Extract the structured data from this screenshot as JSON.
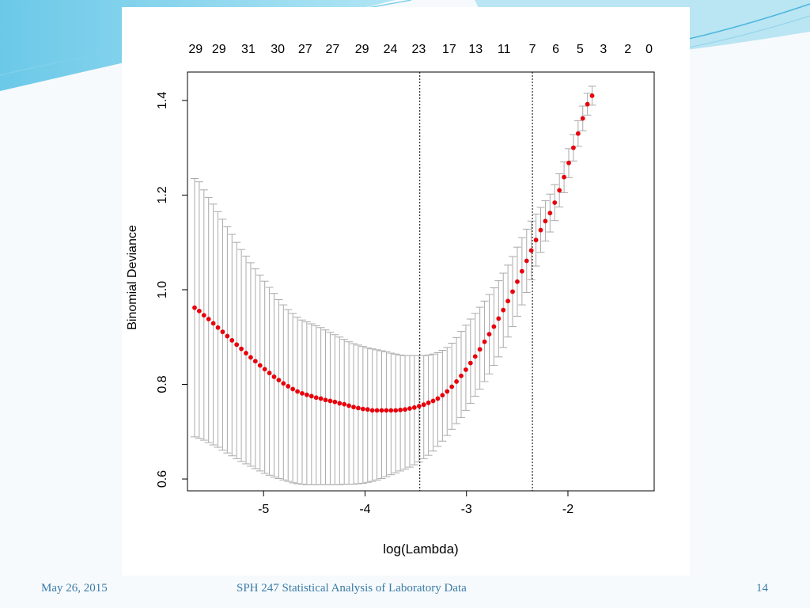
{
  "slide": {
    "footer_date": "May 26, 2015",
    "footer_title": "SPH 247 Statistical Analysis of Laboratory Data",
    "page_number": "14",
    "accent_color": "#3a7ca8"
  },
  "chart_data": {
    "type": "scatter",
    "xlabel": "log(Lambda)",
    "ylabel": "Binomial Deviance",
    "xlim": [
      -5.75,
      -1.15
    ],
    "ylim": [
      0.575,
      1.46
    ],
    "x_ticks": [
      -5,
      -4,
      -3,
      -2
    ],
    "y_ticks": [
      0.6,
      0.8,
      1.0,
      1.2,
      1.4
    ],
    "y_tick_labels": [
      "0.6",
      "0.8",
      "1.0",
      "1.2",
      "1.4"
    ],
    "top_axis": {
      "x": [
        -5.67,
        -5.44,
        -5.15,
        -4.86,
        -4.59,
        -4.32,
        -4.03,
        -3.75,
        -3.47,
        -3.17,
        -2.91,
        -2.63,
        -2.35,
        -2.12,
        -1.88,
        -1.65,
        -1.41,
        -1.2
      ],
      "labels": [
        "29",
        "29",
        "31",
        "30",
        "27",
        "27",
        "29",
        "24",
        "23",
        "17",
        "13",
        "11",
        "7",
        "6",
        "5",
        "3",
        "2",
        "0"
      ]
    },
    "reference_lines": [
      -3.46,
      -2.35
    ],
    "point_color": "#e8000b",
    "errorbar_color": "#aaaaaa",
    "series": [
      {
        "x_start": -5.68,
        "x_step": 0.0461,
        "mean": [
          0.962,
          0.955,
          0.946,
          0.938,
          0.929,
          0.92,
          0.911,
          0.902,
          0.893,
          0.884,
          0.875,
          0.866,
          0.857,
          0.849,
          0.84,
          0.832,
          0.824,
          0.816,
          0.809,
          0.802,
          0.796,
          0.79,
          0.785,
          0.781,
          0.778,
          0.775,
          0.772,
          0.77,
          0.767,
          0.765,
          0.763,
          0.76,
          0.758,
          0.755,
          0.752,
          0.75,
          0.748,
          0.747,
          0.745,
          0.745,
          0.745,
          0.745,
          0.745,
          0.745,
          0.746,
          0.747,
          0.749,
          0.751,
          0.754,
          0.757,
          0.761,
          0.765,
          0.77,
          0.777,
          0.785,
          0.795,
          0.806,
          0.818,
          0.831,
          0.845,
          0.859,
          0.874,
          0.89,
          0.906,
          0.922,
          0.939,
          0.957,
          0.976,
          0.996,
          1.017,
          1.039,
          1.061,
          1.083,
          1.105,
          1.126,
          1.145,
          1.162,
          1.184,
          1.21,
          1.238,
          1.268,
          1.3,
          1.33,
          1.362,
          1.392,
          1.41
        ],
        "upper": [
          1.235,
          1.228,
          1.211,
          1.195,
          1.181,
          1.165,
          1.149,
          1.133,
          1.117,
          1.1,
          1.085,
          1.071,
          1.057,
          1.044,
          1.031,
          1.018,
          1.005,
          0.992,
          0.979,
          0.968,
          0.958,
          0.95,
          0.942,
          0.936,
          0.932,
          0.928,
          0.924,
          0.92,
          0.915,
          0.91,
          0.905,
          0.9,
          0.895,
          0.89,
          0.886,
          0.883,
          0.88,
          0.877,
          0.875,
          0.873,
          0.871,
          0.869,
          0.866,
          0.864,
          0.862,
          0.861,
          0.861,
          0.861,
          0.861,
          0.861,
          0.862,
          0.864,
          0.867,
          0.872,
          0.878,
          0.887,
          0.899,
          0.912,
          0.925,
          0.938,
          0.95,
          0.963,
          0.976,
          0.99,
          1.004,
          1.019,
          1.035,
          1.052,
          1.07,
          1.09,
          1.11,
          1.128,
          1.145,
          1.16,
          1.174,
          1.188,
          1.202,
          1.222,
          1.245,
          1.27,
          1.298,
          1.328,
          1.357,
          1.388,
          1.415,
          1.43
        ],
        "lower": [
          0.689,
          0.686,
          0.682,
          0.677,
          0.672,
          0.667,
          0.661,
          0.655,
          0.649,
          0.643,
          0.637,
          0.632,
          0.627,
          0.622,
          0.617,
          0.612,
          0.608,
          0.604,
          0.601,
          0.598,
          0.595,
          0.592,
          0.59,
          0.589,
          0.588,
          0.588,
          0.588,
          0.588,
          0.588,
          0.588,
          0.588,
          0.588,
          0.589,
          0.589,
          0.589,
          0.59,
          0.591,
          0.593,
          0.595,
          0.598,
          0.601,
          0.605,
          0.609,
          0.613,
          0.617,
          0.621,
          0.625,
          0.63,
          0.636,
          0.643,
          0.65,
          0.659,
          0.669,
          0.68,
          0.692,
          0.705,
          0.717,
          0.73,
          0.745,
          0.76,
          0.775,
          0.79,
          0.806,
          0.822,
          0.84,
          0.858,
          0.878,
          0.9,
          0.922,
          0.944,
          0.968,
          0.994,
          1.021,
          1.05,
          1.079,
          1.103,
          1.122,
          1.146,
          1.175,
          1.205,
          1.237,
          1.272,
          1.303,
          1.336,
          1.369,
          1.39
        ]
      }
    ]
  }
}
